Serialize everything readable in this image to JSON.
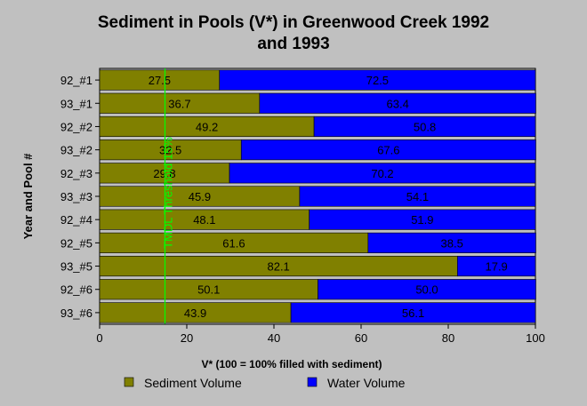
{
  "chart_data": {
    "type": "bar",
    "stacked": true,
    "orientation": "horizontal",
    "title_lines": [
      "Sediment in Pools (V*) in Greenwood Creek 1992",
      "and 1993"
    ],
    "xlabel": "V* (100 = 100% filled with sediment)",
    "ylabel": "Year and Pool #",
    "xlim": [
      0,
      100
    ],
    "xticks": [
      "0",
      "20",
      "40",
      "60",
      "80",
      "100"
    ],
    "categories": [
      "92_#1",
      "93_#1",
      "92_#2",
      "93_#2",
      "92_#3",
      "93_#3",
      "92_#4",
      "92_#5",
      "93_#5",
      "92_#6",
      "93_#6"
    ],
    "series": [
      {
        "name": "Sediment Volume",
        "color": "#808000",
        "values": [
          27.5,
          36.7,
          49.2,
          32.5,
          29.8,
          45.9,
          48.1,
          61.6,
          82.1,
          50.1,
          43.9
        ],
        "labels": [
          "27.5",
          "36.7",
          "49.2",
          "32.5",
          "29.8",
          "45.9",
          "48.1",
          "61.6",
          "82.1",
          "50.1",
          "43.9"
        ]
      },
      {
        "name": "Water Volume",
        "color": "#0000ff",
        "values": [
          72.5,
          63.4,
          50.8,
          67.6,
          70.2,
          54.1,
          51.9,
          38.5,
          17.9,
          50.0,
          56.1
        ],
        "labels": [
          "72.5",
          "63.4",
          "50.8",
          "67.6",
          "70.2",
          "54.1",
          "51.9",
          "38.5",
          "17.9",
          "50.0",
          "56.1"
        ]
      }
    ],
    "threshold": {
      "value": 15,
      "label": "TMDL Threshold 15%",
      "color": "#00ff00"
    },
    "legend_position": "bottom",
    "grid": false
  }
}
